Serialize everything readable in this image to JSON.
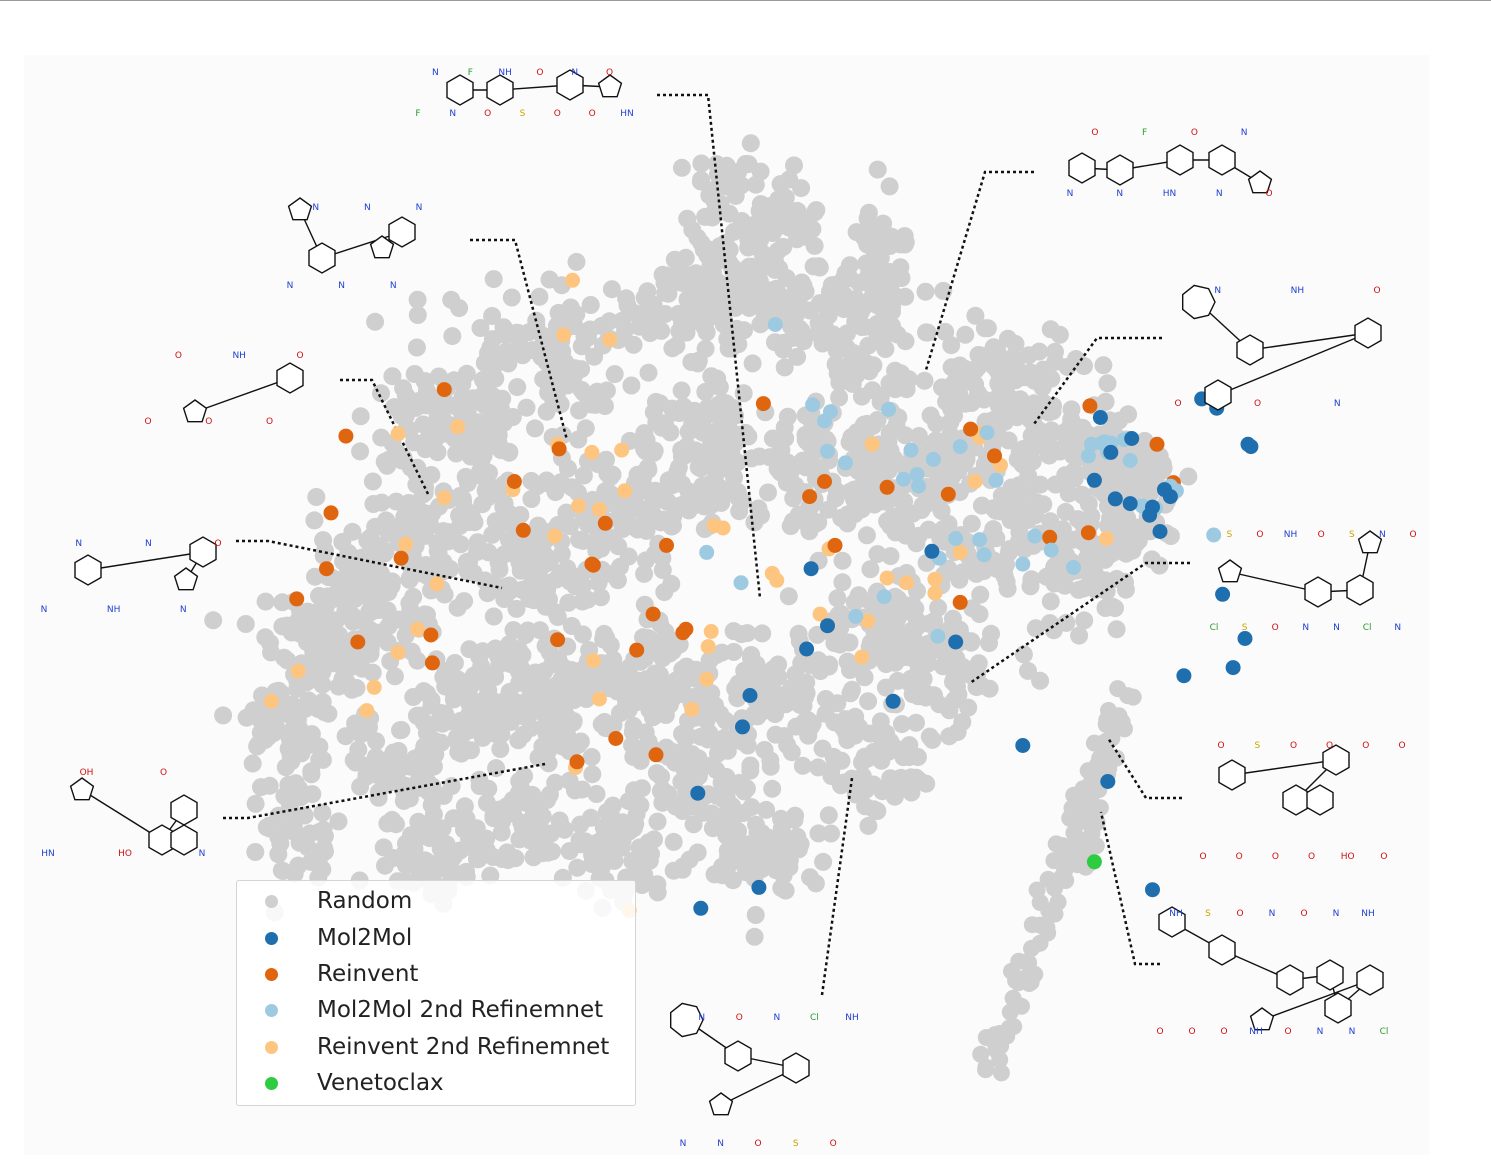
{
  "chart_data": {
    "type": "scatter",
    "title": "",
    "xlabel": "",
    "ylabel": "",
    "grid": false,
    "axes_visible": false,
    "legend_location": "lower-left",
    "xlim": [
      0,
      1
    ],
    "ylim": [
      0,
      1
    ],
    "legend": [
      {
        "key": "random",
        "label": "Random",
        "color": "#cfcfcf"
      },
      {
        "key": "mol2mol",
        "label": "Mol2Mol",
        "color": "#1f6fae"
      },
      {
        "key": "reinvent",
        "label": "Reinvent",
        "color": "#e0650f"
      },
      {
        "key": "mol2mol_2nd",
        "label": "Mol2Mol 2nd Refinemnet",
        "color": "#9ecae1"
      },
      {
        "key": "reinvent_2nd",
        "label": "Reinvent 2nd Refinemnet",
        "color": "#fdc57f"
      },
      {
        "key": "venetoclax",
        "label": "Venetoclax",
        "color": "#2ecc40"
      }
    ],
    "series": [
      {
        "key": "mol2mol",
        "points": [
          [
            0.544,
            0.511
          ],
          [
            0.625,
            0.526
          ],
          [
            0.758,
            0.567
          ],
          [
            0.773,
            0.564
          ],
          [
            0.734,
            0.587
          ],
          [
            0.781,
            0.579
          ],
          [
            0.785,
            0.573
          ],
          [
            0.745,
            0.611
          ],
          [
            0.759,
            0.623
          ],
          [
            0.738,
            0.641
          ],
          [
            0.806,
            0.657
          ],
          [
            0.816,
            0.649
          ],
          [
            0.839,
            0.616
          ],
          [
            0.837,
            0.618
          ],
          [
            0.778,
            0.543
          ],
          [
            0.82,
            0.489
          ],
          [
            0.835,
            0.451
          ],
          [
            0.827,
            0.426
          ],
          [
            0.794,
            0.419
          ],
          [
            0.641,
            0.448
          ],
          [
            0.686,
            0.359
          ],
          [
            0.743,
            0.328
          ],
          [
            0.773,
            0.235
          ],
          [
            0.599,
            0.397
          ],
          [
            0.541,
            0.442
          ],
          [
            0.555,
            0.462
          ],
          [
            0.503,
            0.402
          ],
          [
            0.498,
            0.375
          ],
          [
            0.468,
            0.318
          ],
          [
            0.509,
            0.237
          ],
          [
            0.47,
            0.219
          ],
          [
            0.748,
            0.571
          ],
          [
            0.771,
            0.557
          ]
        ]
      },
      {
        "key": "reinvent",
        "points": [
          [
            0.375,
            0.614
          ],
          [
            0.298,
            0.665
          ],
          [
            0.345,
            0.586
          ],
          [
            0.232,
            0.625
          ],
          [
            0.222,
            0.559
          ],
          [
            0.269,
            0.52
          ],
          [
            0.406,
            0.55
          ],
          [
            0.398,
            0.514
          ],
          [
            0.199,
            0.485
          ],
          [
            0.351,
            0.544
          ],
          [
            0.447,
            0.531
          ],
          [
            0.512,
            0.653
          ],
          [
            0.553,
            0.586
          ],
          [
            0.595,
            0.581
          ],
          [
            0.56,
            0.531
          ],
          [
            0.543,
            0.573
          ],
          [
            0.644,
            0.482
          ],
          [
            0.651,
            0.631
          ],
          [
            0.776,
            0.618
          ],
          [
            0.787,
            0.585
          ],
          [
            0.636,
            0.575
          ],
          [
            0.73,
            0.542
          ],
          [
            0.731,
            0.651
          ],
          [
            0.704,
            0.538
          ],
          [
            0.667,
            0.608
          ],
          [
            0.46,
            0.459
          ],
          [
            0.44,
            0.351
          ],
          [
            0.458,
            0.456
          ],
          [
            0.413,
            0.365
          ],
          [
            0.387,
            0.345
          ],
          [
            0.427,
            0.441
          ],
          [
            0.438,
            0.472
          ],
          [
            0.374,
            0.45
          ],
          [
            0.29,
            0.43
          ],
          [
            0.24,
            0.448
          ],
          [
            0.219,
            0.511
          ],
          [
            0.289,
            0.454
          ],
          [
            0.397,
            0.515
          ]
        ]
      },
      {
        "key": "mol2mol_2nd",
        "points": [
          [
            0.567,
            0.602
          ],
          [
            0.611,
            0.613
          ],
          [
            0.644,
            0.616
          ],
          [
            0.596,
            0.648
          ],
          [
            0.557,
            0.646
          ],
          [
            0.545,
            0.652
          ],
          [
            0.657,
            0.536
          ],
          [
            0.606,
            0.588
          ],
          [
            0.615,
            0.592
          ],
          [
            0.626,
            0.605
          ],
          [
            0.668,
            0.587
          ],
          [
            0.662,
            0.628
          ],
          [
            0.745,
            0.619
          ],
          [
            0.754,
            0.622
          ],
          [
            0.741,
            0.62
          ],
          [
            0.732,
            0.618
          ],
          [
            0.743,
            0.611
          ],
          [
            0.739,
            0.619
          ],
          [
            0.73,
            0.608
          ],
          [
            0.775,
            0.563
          ],
          [
            0.758,
            0.604
          ],
          [
            0.766,
            0.565
          ],
          [
            0.789,
            0.578
          ],
          [
            0.814,
            0.54
          ],
          [
            0.785,
            0.582
          ],
          [
            0.72,
            0.512
          ],
          [
            0.705,
            0.527
          ],
          [
            0.694,
            0.539
          ],
          [
            0.66,
            0.523
          ],
          [
            0.686,
            0.515
          ],
          [
            0.629,
            0.453
          ],
          [
            0.497,
            0.499
          ],
          [
            0.474,
            0.525
          ],
          [
            0.574,
            0.47
          ],
          [
            0.641,
            0.537
          ],
          [
            0.63,
            0.52
          ],
          [
            0.593,
            0.487
          ],
          [
            0.616,
            0.582
          ],
          [
            0.555,
            0.612
          ],
          [
            0.553,
            0.638
          ],
          [
            0.52,
            0.721
          ]
        ]
      },
      {
        "key": "reinvent_2nd",
        "points": [
          [
            0.384,
            0.759
          ],
          [
            0.409,
            0.708
          ],
          [
            0.417,
            0.613
          ],
          [
            0.397,
            0.611
          ],
          [
            0.388,
            0.565
          ],
          [
            0.307,
            0.633
          ],
          [
            0.374,
            0.618
          ],
          [
            0.402,
            0.562
          ],
          [
            0.298,
            0.572
          ],
          [
            0.293,
            0.498
          ],
          [
            0.372,
            0.539
          ],
          [
            0.267,
            0.627
          ],
          [
            0.272,
            0.532
          ],
          [
            0.267,
            0.439
          ],
          [
            0.28,
            0.459
          ],
          [
            0.182,
            0.397
          ],
          [
            0.251,
            0.409
          ],
          [
            0.2,
            0.423
          ],
          [
            0.246,
            0.389
          ],
          [
            0.479,
            0.548
          ],
          [
            0.477,
            0.457
          ],
          [
            0.485,
            0.546
          ],
          [
            0.556,
            0.528
          ],
          [
            0.585,
            0.618
          ],
          [
            0.578,
            0.435
          ],
          [
            0.582,
            0.466
          ],
          [
            0.521,
            0.501
          ],
          [
            0.475,
            0.444
          ],
          [
            0.474,
            0.416
          ],
          [
            0.398,
            0.432
          ],
          [
            0.402,
            0.399
          ],
          [
            0.419,
            0.578
          ],
          [
            0.464,
            0.39
          ],
          [
            0.386,
            0.34
          ],
          [
            0.422,
            0.217
          ],
          [
            0.659,
            0.628
          ],
          [
            0.654,
            0.586
          ],
          [
            0.742,
            0.537
          ],
          [
            0.671,
            0.6
          ],
          [
            0.657,
            0.624
          ],
          [
            0.627,
            0.502
          ],
          [
            0.608,
            0.499
          ],
          [
            0.595,
            0.503
          ],
          [
            0.627,
            0.49
          ],
          [
            0.644,
            0.525
          ],
          [
            0.55,
            0.472
          ],
          [
            0.518,
            0.507
          ],
          [
            0.378,
            0.712
          ],
          [
            0.344,
            0.579
          ]
        ]
      },
      {
        "key": "venetoclax",
        "points": [
          [
            0.734,
            0.259
          ]
        ]
      }
    ]
  },
  "legend_labels": {
    "random": "Random",
    "mol2mol": "Mol2Mol",
    "reinvent": "Reinvent",
    "mol2mol_2nd": "Mol2Mol 2nd Refinemnet",
    "reinvent_2nd": "Reinvent 2nd Refinemnet",
    "venetoclax": "Venetoclax"
  },
  "callout_molecules": [
    {
      "id": "mol-top-center",
      "atoms": [
        "F",
        "N",
        "N",
        "F",
        "O",
        "NH",
        "S",
        "O",
        "O",
        "N",
        "O",
        "O",
        "HN"
      ]
    },
    {
      "id": "mol-top-right",
      "atoms": [
        "N",
        "O",
        "N",
        "F",
        "HN",
        "O",
        "N",
        "N",
        "O"
      ]
    },
    {
      "id": "mol-left-tetrazole",
      "atoms": [
        "N",
        "N",
        "N",
        "N",
        "N",
        "N"
      ]
    },
    {
      "id": "mol-right-pyridone",
      "atoms": [
        "O",
        "N",
        "O",
        "NH",
        "N",
        "O"
      ]
    },
    {
      "id": "mol-left-furan",
      "atoms": [
        "O",
        "O",
        "O",
        "NH",
        "O",
        "O"
      ]
    },
    {
      "id": "mol-left-hydrazone",
      "atoms": [
        "N",
        "N",
        "NH",
        "N",
        "N",
        "O"
      ]
    },
    {
      "id": "mol-right-thiophene",
      "atoms": [
        "Cl",
        "S",
        "S",
        "O",
        "O",
        "NH",
        "N",
        "O",
        "N",
        "S",
        "Cl",
        "N",
        "N",
        "O"
      ]
    },
    {
      "id": "mol-left-pyrrole",
      "atoms": [
        "HN",
        "OH",
        "HO",
        "O",
        "N"
      ]
    },
    {
      "id": "mol-right-sulfonyl",
      "atoms": [
        "O",
        "O",
        "O",
        "S",
        "O",
        "O",
        "O",
        "O",
        "HO",
        "O",
        "O",
        "O"
      ]
    },
    {
      "id": "mol-bottom-center",
      "atoms": [
        "N",
        "N",
        "N",
        "O",
        "O",
        "N",
        "S",
        "Cl",
        "O",
        "NH"
      ]
    },
    {
      "id": "mol-bottom-right",
      "atoms": [
        "O",
        "NH",
        "O",
        "S",
        "O",
        "O",
        "NH",
        "N",
        "O",
        "O",
        "N",
        "N",
        "N",
        "NH",
        "Cl"
      ]
    }
  ]
}
